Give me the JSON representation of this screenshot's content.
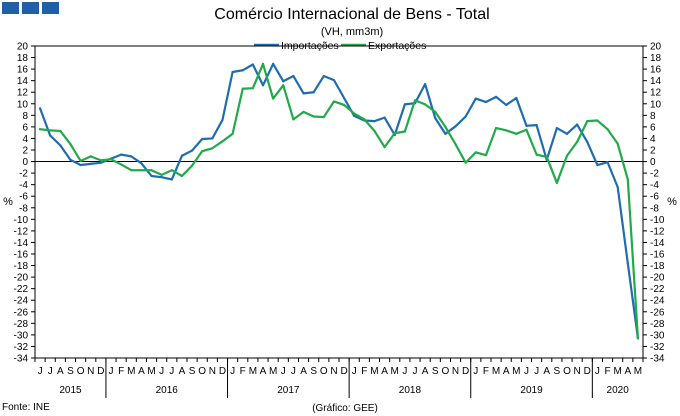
{
  "chart_data": {
    "type": "line",
    "title": "Comércio Internacional de Bens - Total",
    "subtitle": "(VH, mm3m)",
    "ylabel_left": "%",
    "ylabel_right": "%",
    "ylim": [
      -34,
      20
    ],
    "ytick_step": 2,
    "grid": false,
    "legend_position": "top-center",
    "months": [
      "J",
      "J",
      "A",
      "S",
      "O",
      "N",
      "D",
      "J",
      "F",
      "M",
      "A",
      "M",
      "J",
      "J",
      "A",
      "S",
      "O",
      "N",
      "D",
      "J",
      "F",
      "M",
      "A",
      "M",
      "J",
      "J",
      "A",
      "S",
      "O",
      "N",
      "D",
      "J",
      "F",
      "M",
      "A",
      "M",
      "J",
      "J",
      "A",
      "S",
      "O",
      "N",
      "D",
      "J",
      "F",
      "M",
      "A",
      "M",
      "J",
      "J",
      "A",
      "S",
      "O",
      "N",
      "D",
      "J",
      "F",
      "M",
      "A",
      "M"
    ],
    "years": [
      {
        "label": "2015",
        "start": 0,
        "end": 6
      },
      {
        "label": "2016",
        "start": 7,
        "end": 18
      },
      {
        "label": "2017",
        "start": 19,
        "end": 30
      },
      {
        "label": "2018",
        "start": 31,
        "end": 42
      },
      {
        "label": "2019",
        "start": 43,
        "end": 54
      },
      {
        "label": "2020",
        "start": 55,
        "end": 59
      }
    ],
    "series": [
      {
        "name": "Importações",
        "color": "#1f6db0",
        "values": [
          9.2,
          4.5,
          2.8,
          0.3,
          -0.6,
          -0.4,
          -0.2,
          0.5,
          1.2,
          0.9,
          -0.3,
          -2.5,
          -2.7,
          -3.1,
          1.0,
          1.9,
          3.9,
          4.0,
          7.2,
          15.5,
          15.8,
          16.8,
          13.2,
          16.9,
          13.9,
          14.8,
          11.8,
          12.0,
          14.8,
          14.1,
          11.0,
          7.9,
          7.1,
          7.0,
          7.6,
          4.6,
          9.9,
          10.1,
          13.4,
          7.5,
          4.8,
          6.1,
          7.8,
          10.9,
          10.3,
          11.2,
          9.8,
          11.0,
          6.2,
          6.3,
          0.3,
          5.8,
          4.8,
          6.4,
          3.4,
          -0.6,
          -0.1,
          -4.4,
          -17.6,
          -30.6
        ]
      },
      {
        "name": "Exportações",
        "color": "#22aa4a",
        "values": [
          5.6,
          5.4,
          5.3,
          3.0,
          0.1,
          0.9,
          0.2,
          0.4,
          -0.5,
          -1.5,
          -1.5,
          -1.5,
          -2.3,
          -1.5,
          -2.5,
          -0.7,
          1.8,
          2.3,
          3.5,
          4.8,
          12.6,
          12.7,
          16.9,
          10.9,
          13.2,
          7.3,
          8.6,
          7.8,
          7.7,
          10.4,
          9.8,
          8.3,
          7.3,
          5.3,
          2.5,
          4.9,
          5.2,
          10.6,
          9.9,
          8.6,
          6.0,
          3.0,
          -0.2,
          1.6,
          1.1,
          5.8,
          5.4,
          4.8,
          5.5,
          1.2,
          0.8,
          -3.7,
          1.0,
          3.4,
          7.0,
          7.1,
          5.6,
          3.1,
          -3.1,
          -30.6
        ]
      }
    ]
  },
  "footer": {
    "source": "Fonte: INE",
    "credit": "(Gráfico: GEE)"
  }
}
